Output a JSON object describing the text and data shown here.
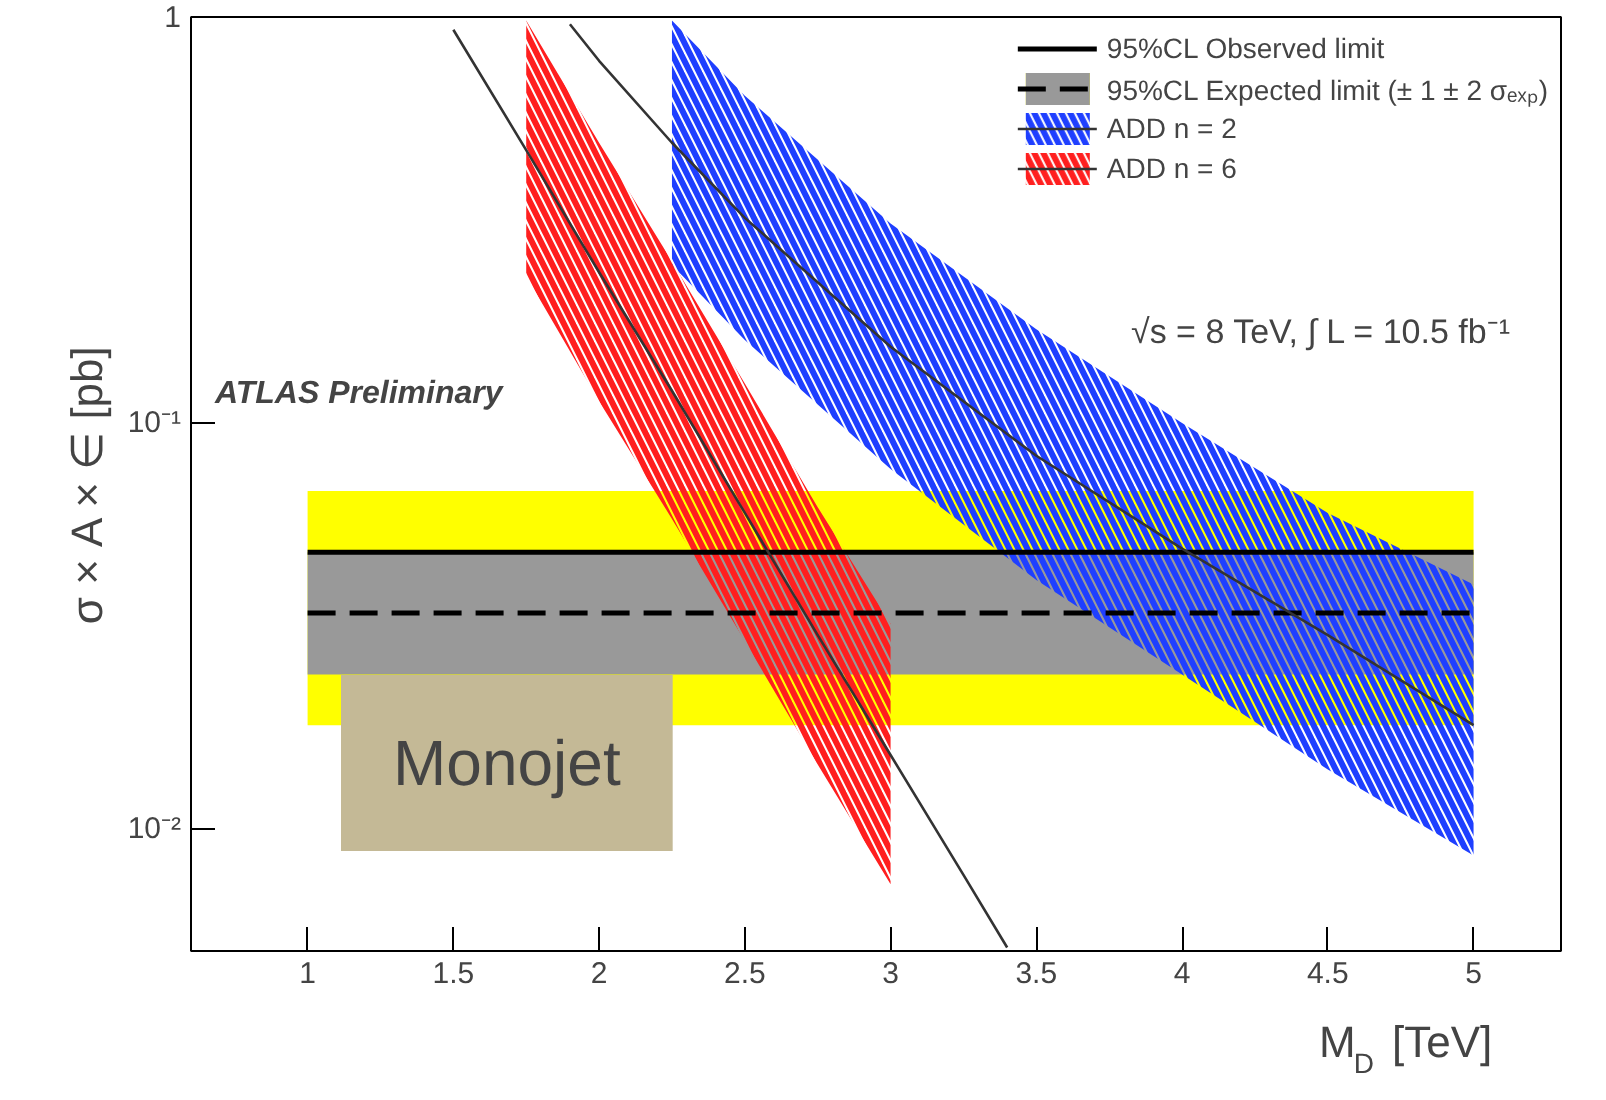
{
  "chart_data": {
    "type": "line",
    "xlabel": "M$_{D}$ [TeV]",
    "ylabel": "σ × A × ∈ [pb]",
    "log": "y",
    "xlim": [
      0.6,
      5.3
    ],
    "ylim": [
      0.005,
      1
    ],
    "xticks": [
      1,
      1.5,
      2,
      2.5,
      3,
      3.5,
      4,
      4.5,
      5
    ],
    "yticks": [
      {
        "value": 0.01,
        "label": "10⁻²"
      },
      {
        "value": 0.1,
        "label": "10⁻¹"
      },
      {
        "value": 1,
        "label": "1"
      }
    ],
    "grid": false,
    "legend": "top right",
    "marker": "none",
    "series": [
      {
        "name": "95%CL Observed limit",
        "color": "#000000",
        "line_style": "solid",
        "x": [
          1,
          5
        ],
        "values": [
          0.048,
          0.048
        ]
      },
      {
        "color": "#ffff00",
        "x": [
          1,
          5
        ],
        "values": [
          null,
          null
        ],
        "lower": [
          0.018,
          0.018
        ],
        "upper": [
          0.068,
          0.068
        ]
      },
      {
        "color": "#999999",
        "x": [
          1,
          5
        ],
        "values": [
          null,
          null
        ],
        "lower": [
          0.024,
          0.024
        ],
        "upper": [
          0.048,
          0.048
        ]
      },
      {
        "name": "95%CL Expected limit (± 1 ± 2 σₑₓₚ)",
        "color": "#000000",
        "line_style": "dashed",
        "x": [
          1,
          5
        ],
        "values": [
          0.034,
          0.034
        ]
      },
      {
        "color": "#1f3fff",
        "x": [
          2.25,
          2.5,
          3,
          3.5,
          4,
          4.5,
          5
        ],
        "values": [
          null,
          null,
          null,
          null,
          null,
          null,
          null
        ],
        "lower": [
          0.245,
          0.16,
          0.077,
          0.041,
          0.024,
          0.014,
          0.0086
        ],
        "upper": [
          0.98,
          0.64,
          0.31,
          0.17,
          0.1,
          0.06,
          0.04
        ]
      },
      {
        "name": "ADD n = 2",
        "color": "#333333",
        "line_style": "solid",
        "x": [
          1.9,
          2,
          2.25,
          2.5,
          3,
          3.5,
          4,
          4.5,
          5
        ],
        "values": [
          0.96,
          0.78,
          0.49,
          0.32,
          0.154,
          0.083,
          0.049,
          0.03,
          0.018
        ]
      },
      {
        "color": "#ff1f1f",
        "x": [
          1.75,
          2,
          2.25,
          2.5,
          2.75,
          3
        ],
        "values": [
          null,
          null,
          null,
          null,
          null,
          null
        ],
        "lower": [
          0.23,
          0.113,
          0.058,
          0.029,
          0.0144,
          0.0073
        ],
        "upper": [
          0.98,
          0.49,
          0.25,
          0.125,
          0.062,
          0.032
        ]
      },
      {
        "name": "ADD n = 6",
        "color": "#333333",
        "line_style": "solid",
        "x": [
          1.5,
          1.75,
          2,
          2.25,
          2.5,
          2.75,
          3,
          3.25,
          3.4
        ],
        "values": [
          0.93,
          0.47,
          0.235,
          0.12,
          0.06,
          0.03,
          0.0152,
          0.0077,
          0.0051
        ]
      }
    ],
    "annotations": [
      "ATLAS Preliminary",
      "√s = 8 TeV, ∫ L = 10.5 fb⁻¹",
      "Monojet"
    ]
  }
}
